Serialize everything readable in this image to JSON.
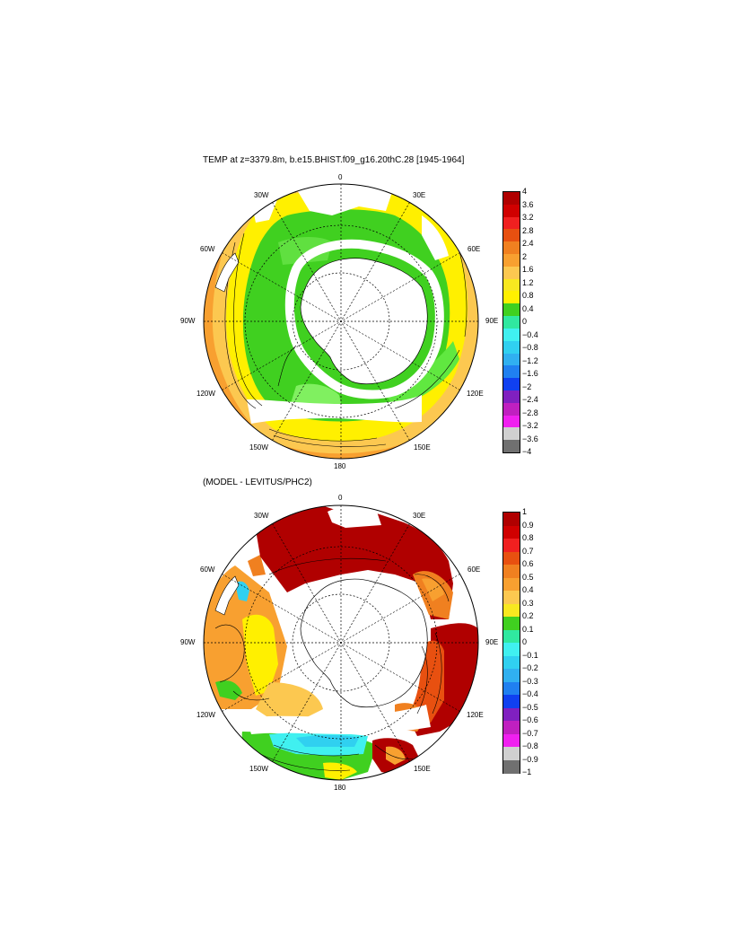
{
  "map1": {
    "title": "TEMP at z=3379.8m, b.e15.BHIST.f09_g16.20thC.28 [1945-1964]",
    "lon_labels": {
      "n0": "0",
      "e30": "30E",
      "e60": "60E",
      "e90": "90E",
      "e120": "120E",
      "e150": "150E",
      "s180": "180",
      "w150": "150W",
      "w120": "120W",
      "w90": "90W",
      "w60": "60W",
      "w30": "30W"
    },
    "colorbar": {
      "labels": [
        "4",
        "3.6",
        "3.2",
        "2.8",
        "2.4",
        "2",
        "1.6",
        "1.2",
        "0.8",
        "0.4",
        "0",
        "−0.4",
        "−0.8",
        "−1.2",
        "−1.6",
        "−2",
        "−2.4",
        "−2.8",
        "−3.2",
        "−3.6",
        "−4"
      ],
      "colors": [
        "#b00000",
        "#d00000",
        "#f02020",
        "#e85010",
        "#f08020",
        "#f8a030",
        "#fcc850",
        "#f8e820",
        "#fff000",
        "#40d020",
        "#30e8a0",
        "#40f0f0",
        "#30d0f0",
        "#30b0f0",
        "#2080f0",
        "#1040f0",
        "#8020c0",
        "#c020c0",
        "#f020f0",
        "#d0d0d0",
        "#707070"
      ]
    }
  },
  "map2": {
    "title": "(MODEL - LEVITUS/PHC2)",
    "lon_labels": {
      "n0": "0",
      "e30": "30E",
      "e60": "60E",
      "e90": "90E",
      "e120": "120E",
      "e150": "150E",
      "s180": "180",
      "w150": "150W",
      "w120": "120W",
      "w90": "90W",
      "w60": "60W",
      "w30": "30W"
    },
    "colorbar": {
      "labels": [
        "1",
        "0.9",
        "0.8",
        "0.7",
        "0.6",
        "0.5",
        "0.4",
        "0.3",
        "0.2",
        "0.1",
        "0",
        "−0.1",
        "−0.2",
        "−0.3",
        "−0.4",
        "−0.5",
        "−0.6",
        "−0.7",
        "−0.8",
        "−0.9",
        "−1"
      ],
      "colors": [
        "#b00000",
        "#d00000",
        "#f02020",
        "#e85010",
        "#f08020",
        "#f8a030",
        "#fcc850",
        "#f8e820",
        "#40d020",
        "#30e8a0",
        "#40f0f0",
        "#30d0f0",
        "#30b0f0",
        "#2080f0",
        "#1040f0",
        "#8020c0",
        "#c020c0",
        "#f020f0",
        "#d0d0d0",
        "#707070"
      ]
    }
  },
  "colors": {
    "land": "#ffffff",
    "grid": "#000000"
  }
}
